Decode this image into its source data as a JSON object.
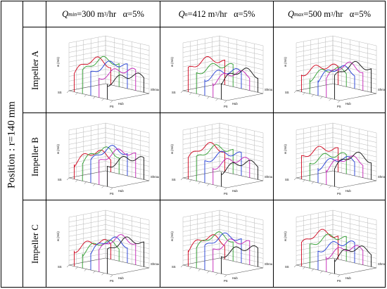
{
  "position_label": "Position : r=140 mm",
  "columns": [
    {
      "q_symbol": "Q",
      "q_sub": "min",
      "flow": "=300 m",
      "unit_exp": "3",
      "unit_tail": "/hr",
      "alpha": "α=5%"
    },
    {
      "q_symbol": "Q",
      "q_sub": "n",
      "flow": "=412 m",
      "unit_exp": "3",
      "unit_tail": "/hr",
      "alpha": "α=5%"
    },
    {
      "q_symbol": "Q",
      "q_sub": "max",
      "flow": "=500 m",
      "unit_exp": "3",
      "unit_tail": "/hr",
      "alpha": "α=5%"
    }
  ],
  "rows": [
    {
      "label": "Impeller A"
    },
    {
      "label": "Impeller B"
    },
    {
      "label": "Impeller C"
    }
  ],
  "plot_labels": {
    "axis_vertical": "w (m/s)",
    "axis_ps": "PS",
    "axis_ss": "SS",
    "axis_hub": "Hub",
    "axis_shroud": "Shroud"
  },
  "colors": {
    "series": [
      "#d0021b",
      "#2e9e2e",
      "#1f3bd6",
      "#c21fb5",
      "#111111"
    ],
    "grid": "#b8b8b8",
    "axis": "#555555"
  }
}
